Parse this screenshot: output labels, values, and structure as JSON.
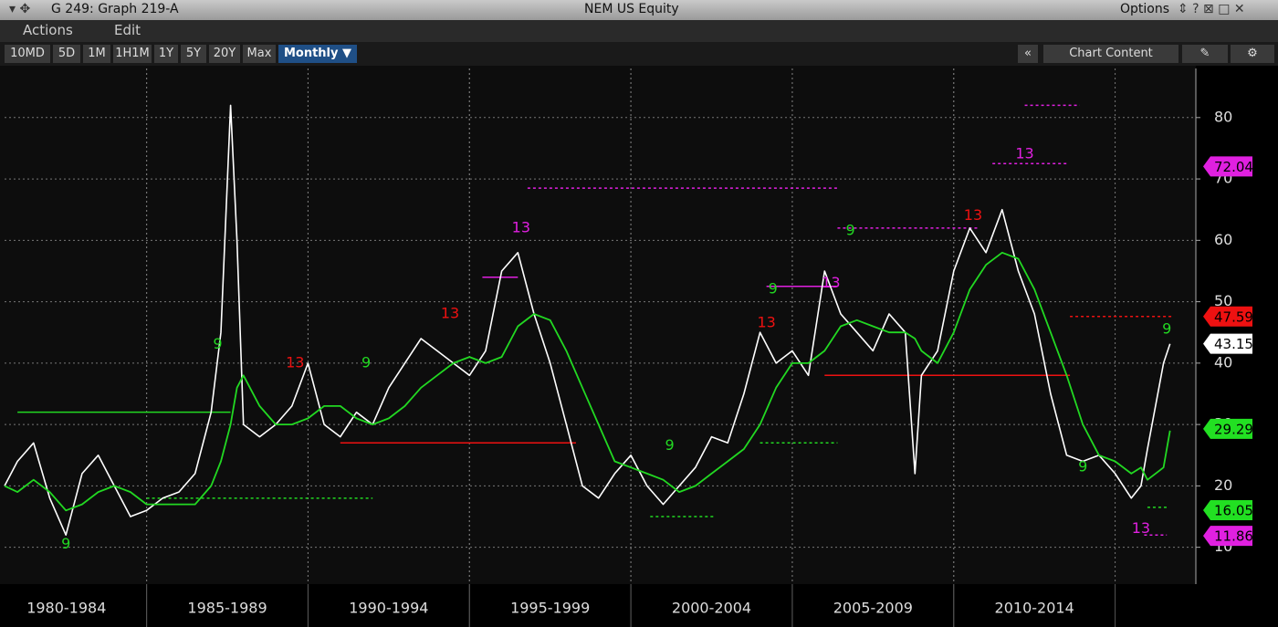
{
  "window": {
    "title": "G 249: Graph 219-A",
    "ticker": "NEM US Equity",
    "options": "Options"
  },
  "menu": [
    "Actions",
    "Edit"
  ],
  "toolbar": {
    "buttons": [
      "10MD",
      "5D",
      "1M",
      "1H1M",
      "1Y",
      "5Y",
      "20Y",
      "Max",
      "Monthly ▼"
    ],
    "collapse": "«",
    "chart_content": "Chart Content"
  },
  "chart_data": {
    "type": "line",
    "x": [
      1980.6,
      1981,
      1981.5,
      1982,
      1982.5,
      1983,
      1983.5,
      1984,
      1984.5,
      1985,
      1985.5,
      1986,
      1986.5,
      1987,
      1987.3,
      1987.6,
      1987.8,
      1988,
      1988.5,
      1989,
      1989.5,
      1990,
      1990.5,
      1991,
      1991.5,
      1992,
      1992.5,
      1993,
      1993.5,
      1994,
      1994.5,
      1995,
      1995.5,
      1996,
      1996.5,
      1997,
      1997.5,
      1998,
      1998.5,
      1999,
      1999.5,
      2000,
      2000.5,
      2001,
      2001.5,
      2002,
      2002.5,
      2003,
      2003.5,
      2004,
      2004.5,
      2005,
      2005.5,
      2006,
      2006.5,
      2007,
      2007.5,
      2008,
      2008.5,
      2008.8,
      2009,
      2009.5,
      2010,
      2010.5,
      2011,
      2011.5,
      2012,
      2012.5,
      2013,
      2013.5,
      2014,
      2014.5,
      2015,
      2015.5,
      2015.8,
      2016,
      2016.5,
      2016.7
    ],
    "series": [
      {
        "color": "#ffffff",
        "values": [
          20,
          24,
          27,
          18,
          12,
          22,
          25,
          20,
          15,
          16,
          18,
          19,
          22,
          32,
          45,
          82,
          60,
          30,
          28,
          30,
          33,
          40,
          30,
          28,
          32,
          30,
          36,
          40,
          44,
          42,
          40,
          38,
          42,
          55,
          58,
          48,
          40,
          30,
          20,
          18,
          22,
          25,
          20,
          17,
          20,
          23,
          28,
          27,
          35,
          45,
          40,
          42,
          38,
          55,
          48,
          45,
          42,
          48,
          45,
          22,
          38,
          42,
          55,
          62,
          58,
          65,
          55,
          48,
          35,
          25,
          24,
          25,
          22,
          18,
          20,
          26,
          40,
          43.15
        ]
      },
      {
        "color": "#22d822",
        "values": [
          20,
          19,
          21,
          19,
          16,
          17,
          19,
          20,
          19,
          17,
          17,
          17,
          17,
          20,
          24,
          30,
          36,
          38,
          33,
          30,
          30,
          31,
          33,
          33,
          31,
          30,
          31,
          33,
          36,
          38,
          40,
          41,
          40,
          41,
          46,
          48,
          47,
          42,
          36,
          30,
          24,
          23,
          22,
          21,
          19,
          20,
          22,
          24,
          26,
          30,
          36,
          40,
          40,
          42,
          46,
          47,
          46,
          45,
          45,
          44,
          42,
          40,
          45,
          52,
          56,
          58,
          57,
          52,
          45,
          38,
          30,
          25,
          24,
          22,
          23,
          21,
          23,
          29
        ]
      }
    ],
    "xlim": [
      1980.6,
      2017.5
    ],
    "ylim": [
      4,
      88
    ],
    "yticks": [
      10,
      20,
      30,
      40,
      50,
      60,
      70,
      80
    ],
    "xticks": [
      {
        "value": 1980,
        "label": "1980-1984"
      },
      {
        "value": 1985,
        "label": "1985-1989"
      },
      {
        "value": 1990,
        "label": "1990-1994"
      },
      {
        "value": 1995,
        "label": "1995-1999"
      },
      {
        "value": 2000,
        "label": "2000-2004"
      },
      {
        "value": 2005,
        "label": "2005-2009"
      },
      {
        "value": 2010,
        "label": "2010-2014"
      }
    ],
    "grid": true,
    "price_labels": [
      {
        "value": 72.04,
        "color": "#e020e0"
      },
      {
        "value": 47.59,
        "color": "#ee1111"
      },
      {
        "value": 43.15,
        "color": "#ffffff"
      },
      {
        "value": 29.2901,
        "color": "#22e022"
      },
      {
        "value": 16.05,
        "color": "#22e022"
      },
      {
        "value": 11.86,
        "color": "#e020e0"
      }
    ],
    "levels": [
      {
        "x": [
          1981,
          1987.6
        ],
        "y": 32,
        "color": "#22d822",
        "dashed": false
      },
      {
        "x": [
          1985,
          1992
        ],
        "y": 18,
        "color": "#22d822",
        "dashed": true
      },
      {
        "x": [
          1991,
          1998.3
        ],
        "y": 27,
        "color": "#ee1111",
        "dashed": false
      },
      {
        "x": [
          1995.4,
          1996.5
        ],
        "y": 54,
        "color": "#e020e0",
        "dashed": false
      },
      {
        "x": [
          1996.8,
          2006.4
        ],
        "y": 68.5,
        "color": "#e020e0",
        "dashed": true
      },
      {
        "x": [
          2000.6,
          2002.6
        ],
        "y": 15,
        "color": "#22d822",
        "dashed": true
      },
      {
        "x": [
          2004,
          2006.4
        ],
        "y": 27,
        "color": "#22d822",
        "dashed": true
      },
      {
        "x": [
          2004.2,
          2006.4
        ],
        "y": 52.5,
        "color": "#e020e0",
        "dashed": false
      },
      {
        "x": [
          2006,
          2013.6
        ],
        "y": 38,
        "color": "#ee1111",
        "dashed": false
      },
      {
        "x": [
          2006.4,
          2010.8
        ],
        "y": 62,
        "color": "#e020e0",
        "dashed": true
      },
      {
        "x": [
          2011.2,
          2013.5
        ],
        "y": 72.5,
        "color": "#e020e0",
        "dashed": true
      },
      {
        "x": [
          2012.2,
          2013.9
        ],
        "y": 82,
        "color": "#e020e0",
        "dashed": true
      },
      {
        "x": [
          2013.6,
          2016.8
        ],
        "y": 47.6,
        "color": "#ee1111",
        "dashed": true
      },
      {
        "x": [
          2016,
          2016.6
        ],
        "y": 16.5,
        "color": "#22d822",
        "dashed": true
      },
      {
        "x": [
          2015.9,
          2016.6
        ],
        "y": 12,
        "color": "#e020e0",
        "dashed": true
      }
    ],
    "annotations": [
      {
        "text": "9",
        "x": 1982.5,
        "y": 10.5,
        "color": "#22d822"
      },
      {
        "text": "9",
        "x": 1987.2,
        "y": 43,
        "color": "#22d822"
      },
      {
        "text": "13",
        "x": 1989.6,
        "y": 40,
        "color": "#ee1111"
      },
      {
        "text": "9",
        "x": 1991.8,
        "y": 40,
        "color": "#22d822"
      },
      {
        "text": "13",
        "x": 1994.4,
        "y": 48,
        "color": "#ee1111"
      },
      {
        "text": "13",
        "x": 1996.6,
        "y": 62,
        "color": "#e020e0"
      },
      {
        "text": "9",
        "x": 2001.2,
        "y": 26.5,
        "color": "#22d822"
      },
      {
        "text": "13",
        "x": 2004.2,
        "y": 46.5,
        "color": "#ee1111"
      },
      {
        "text": "9",
        "x": 2004.4,
        "y": 52,
        "color": "#22d822"
      },
      {
        "text": "13",
        "x": 2006.2,
        "y": 53,
        "color": "#e020e0"
      },
      {
        "text": "9",
        "x": 2006.8,
        "y": 61.5,
        "color": "#22d822"
      },
      {
        "text": "13",
        "x": 2010.6,
        "y": 64,
        "color": "#ee1111"
      },
      {
        "text": "13",
        "x": 2012.2,
        "y": 74,
        "color": "#e020e0"
      },
      {
        "text": "9",
        "x": 2014,
        "y": 23,
        "color": "#22d822"
      },
      {
        "text": "13",
        "x": 2015.8,
        "y": 13,
        "color": "#e020e0"
      },
      {
        "text": "9",
        "x": 2016.6,
        "y": 45.5,
        "color": "#22d822"
      }
    ]
  }
}
